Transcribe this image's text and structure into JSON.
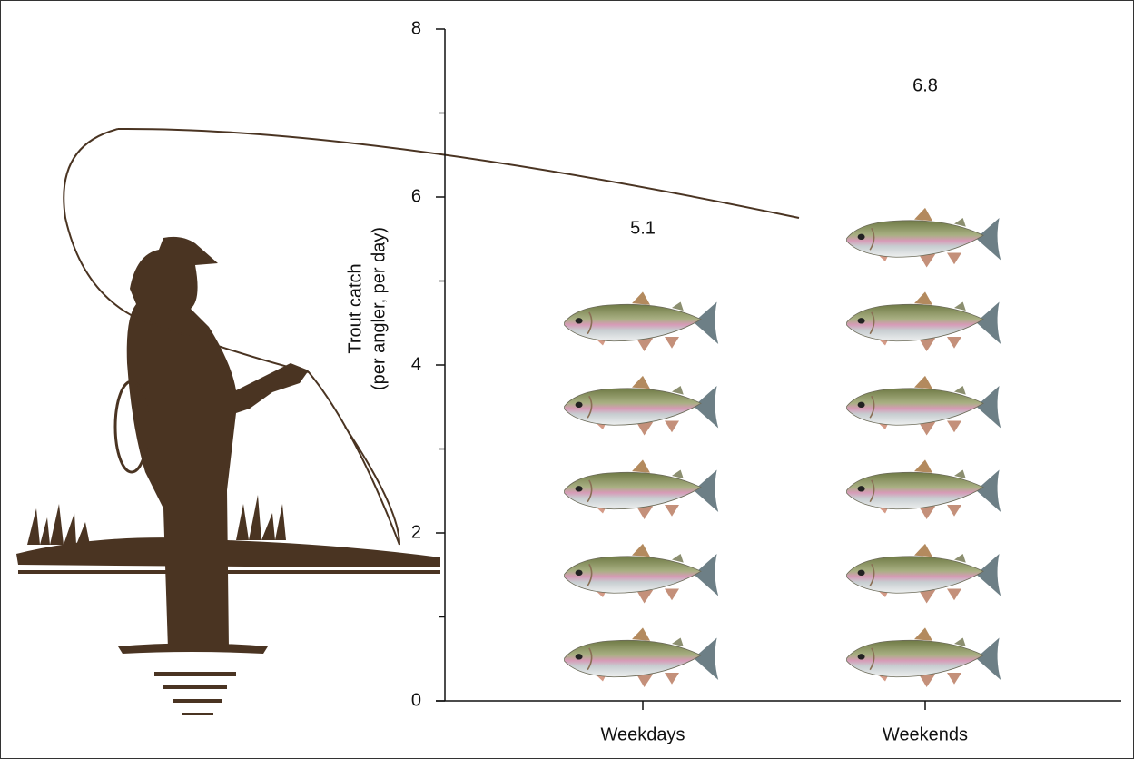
{
  "chart_data": {
    "type": "pictograph",
    "y_label": [
      "Trout catch",
      "(per angler, per day)"
    ],
    "categories": [
      "Weekdays",
      "Weekends"
    ],
    "values": [
      5.1,
      6.8
    ],
    "ylim": [
      0,
      8
    ],
    "yticks": [
      0,
      2,
      4,
      6,
      8
    ],
    "yminorticks": [
      1,
      3,
      5,
      7
    ]
  }
}
